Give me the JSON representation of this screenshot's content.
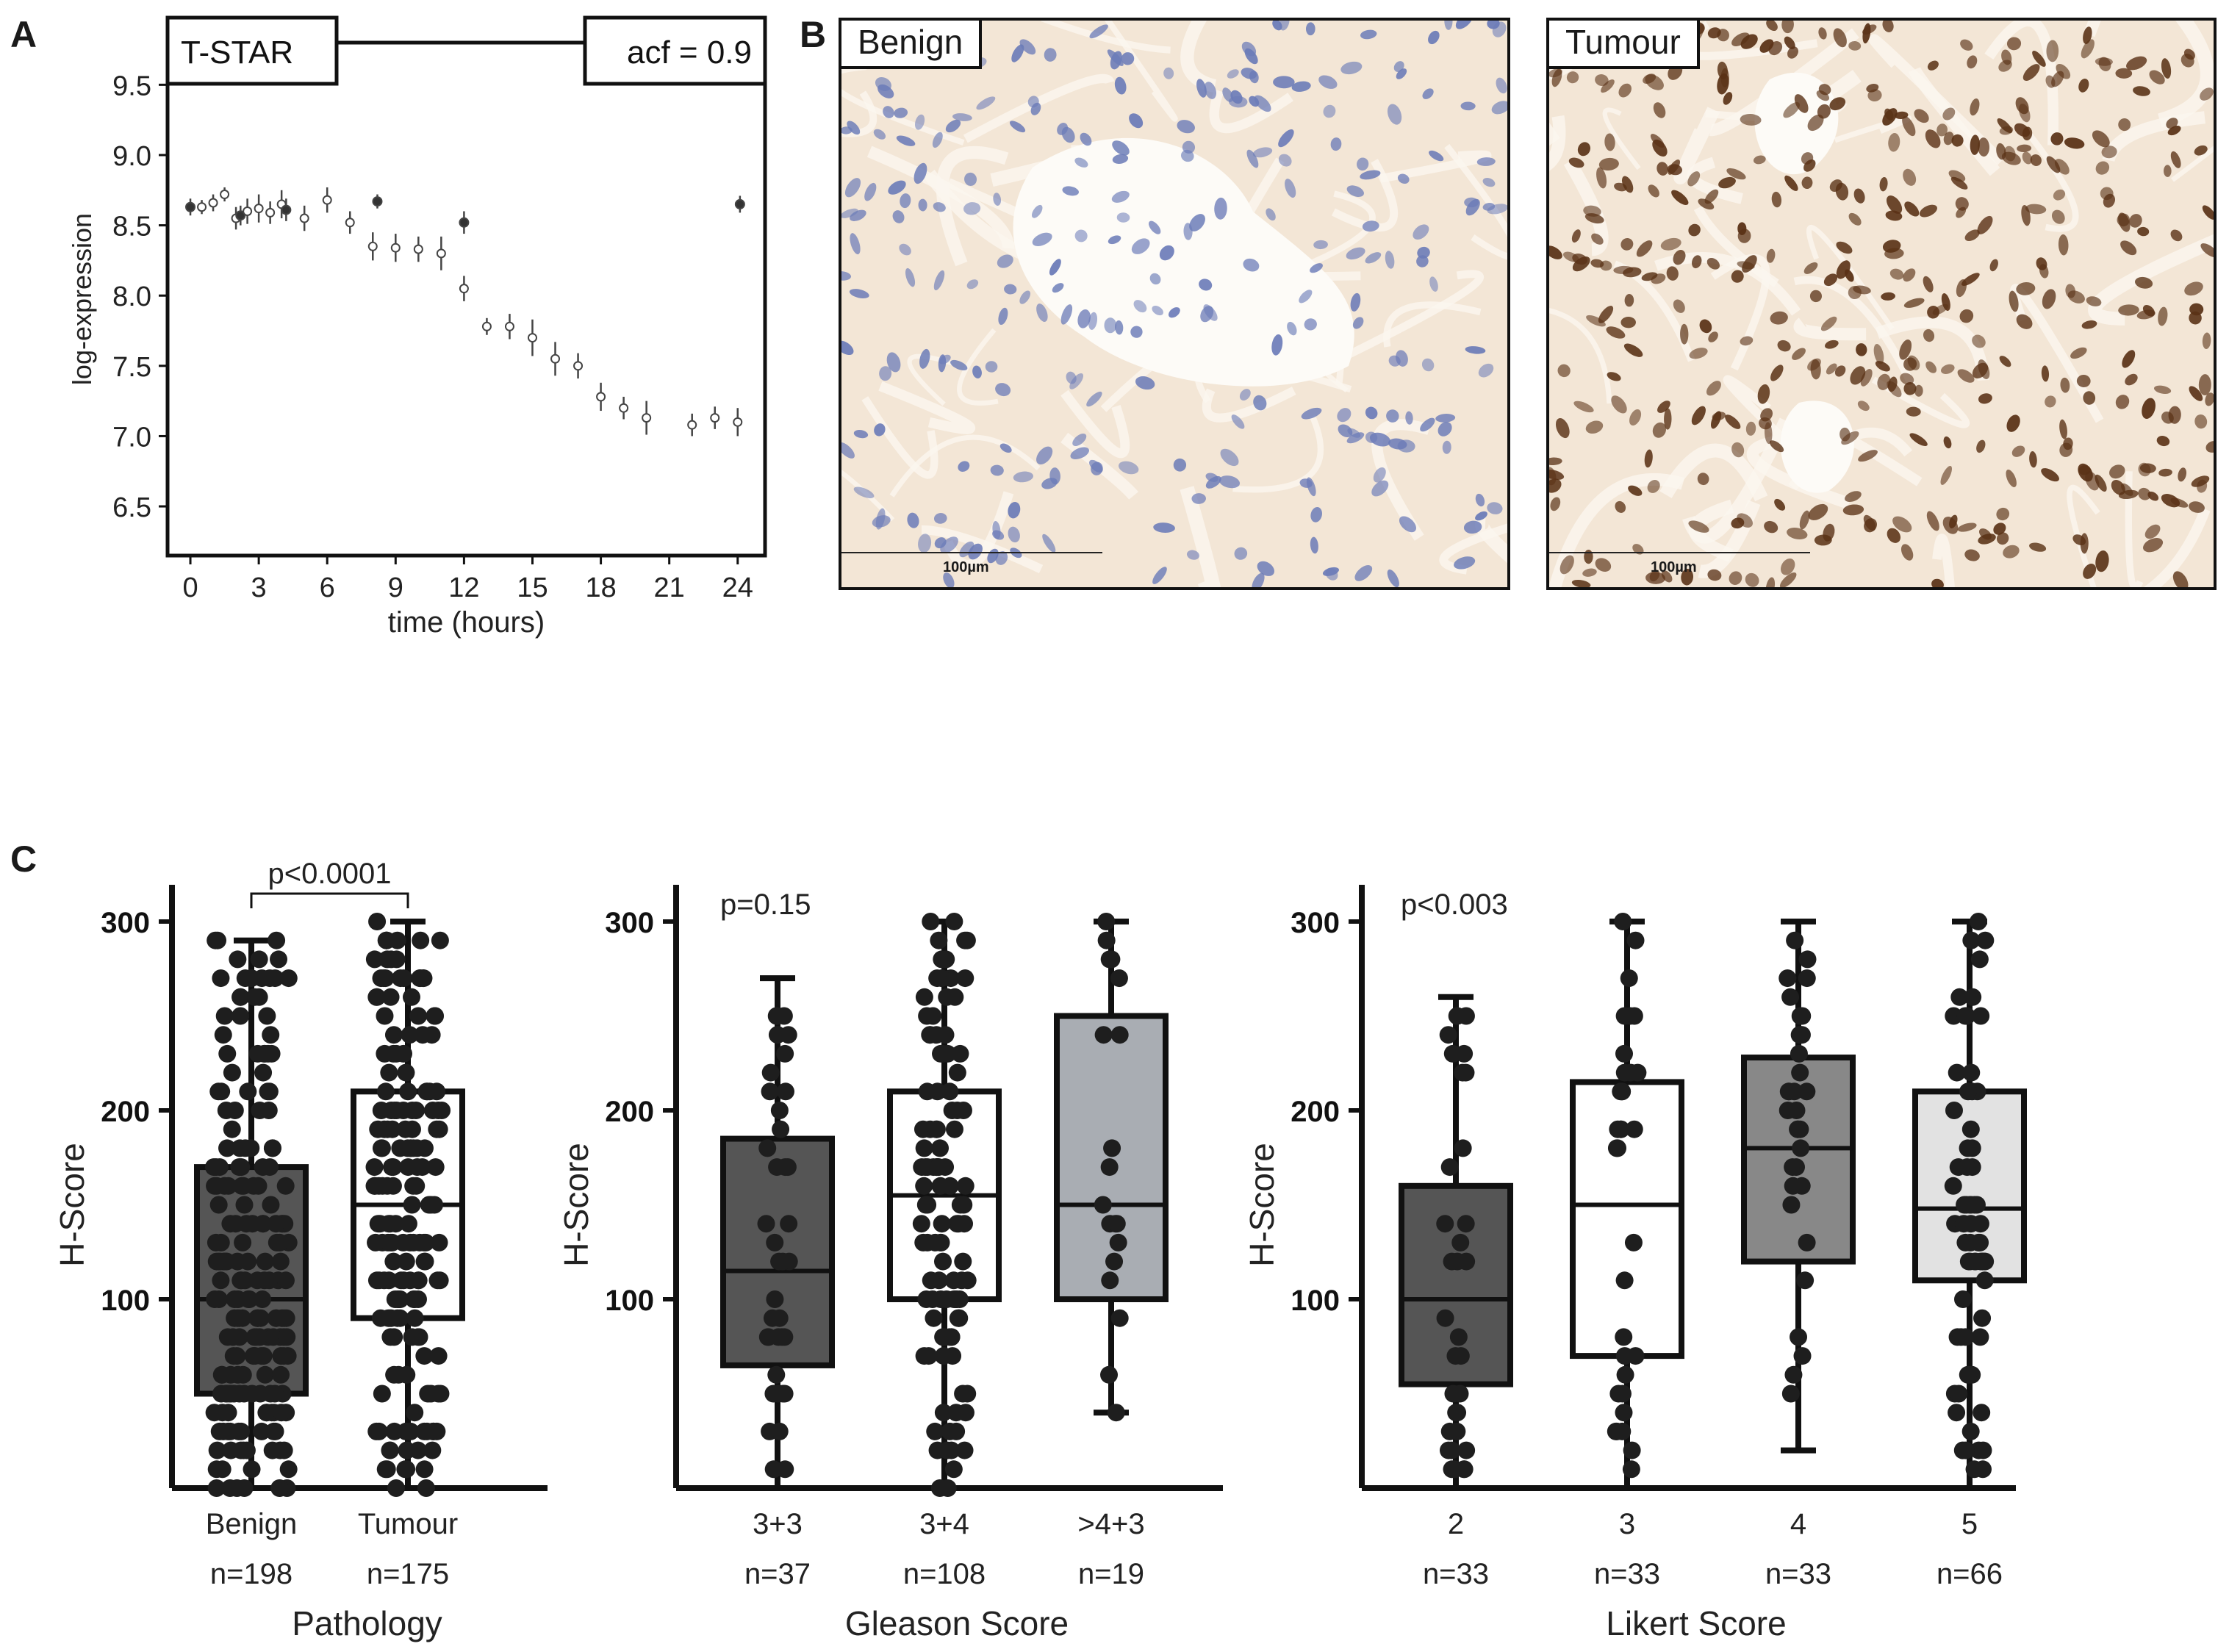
{
  "panel_letters": {
    "a": "A",
    "b": "B",
    "c": "C"
  },
  "panel_b": {
    "images": [
      {
        "label": "Benign",
        "scale": "100µm",
        "stain": "light"
      },
      {
        "label": "Tumour",
        "scale": "100µm",
        "stain": "dark"
      }
    ],
    "colors": {
      "bg": "#f3e6d6",
      "stroma": "#ead8c2",
      "nucleus_light": "#6c7cb8",
      "nucleus_dark": "#5a3216"
    }
  },
  "chart_data": [
    {
      "type": "scatter",
      "panel": "A",
      "title": "T-STAR",
      "annotation": "acf = 0.9",
      "xlabel": "time (hours)",
      "ylabel": "log-expression",
      "xlim": [
        -1,
        25.2
      ],
      "ylim": [
        6.15,
        9.8
      ],
      "xticks": [
        0,
        3,
        6,
        9,
        12,
        15,
        18,
        21,
        24
      ],
      "yticks": [
        6.5,
        7.0,
        7.5,
        8.0,
        8.5,
        9.0,
        9.5
      ],
      "ytick_labels": [
        "6.5",
        "7.0",
        "7.5",
        "8.0",
        "8.5",
        "9.0",
        "9.5"
      ],
      "points": [
        {
          "x": 0,
          "y": 8.63,
          "err": 0.06,
          "solid": true
        },
        {
          "x": 0.5,
          "y": 8.63,
          "err": 0.05,
          "solid": false
        },
        {
          "x": 1,
          "y": 8.66,
          "err": 0.06,
          "solid": false
        },
        {
          "x": 1.5,
          "y": 8.72,
          "err": 0.05,
          "solid": false
        },
        {
          "x": 2,
          "y": 8.55,
          "err": 0.08,
          "solid": false
        },
        {
          "x": 2.2,
          "y": 8.57,
          "err": 0.07,
          "solid": true
        },
        {
          "x": 2.5,
          "y": 8.6,
          "err": 0.09,
          "solid": false
        },
        {
          "x": 3,
          "y": 8.62,
          "err": 0.1,
          "solid": false
        },
        {
          "x": 3.5,
          "y": 8.59,
          "err": 0.08,
          "solid": false
        },
        {
          "x": 4,
          "y": 8.65,
          "err": 0.1,
          "solid": false
        },
        {
          "x": 4.2,
          "y": 8.61,
          "err": 0.08,
          "solid": true
        },
        {
          "x": 5,
          "y": 8.55,
          "err": 0.09,
          "solid": false
        },
        {
          "x": 6,
          "y": 8.68,
          "err": 0.09,
          "solid": false
        },
        {
          "x": 7,
          "y": 8.52,
          "err": 0.08,
          "solid": false
        },
        {
          "x": 8,
          "y": 8.35,
          "err": 0.1,
          "solid": false
        },
        {
          "x": 8.2,
          "y": 8.67,
          "err": 0.05,
          "solid": true
        },
        {
          "x": 9,
          "y": 8.34,
          "err": 0.1,
          "solid": false
        },
        {
          "x": 10,
          "y": 8.33,
          "err": 0.09,
          "solid": false
        },
        {
          "x": 11,
          "y": 8.3,
          "err": 0.12,
          "solid": false
        },
        {
          "x": 12,
          "y": 8.52,
          "err": 0.08,
          "solid": true
        },
        {
          "x": 12,
          "y": 8.05,
          "err": 0.09,
          "solid": false
        },
        {
          "x": 13,
          "y": 7.78,
          "err": 0.06,
          "solid": false
        },
        {
          "x": 14,
          "y": 7.78,
          "err": 0.09,
          "solid": false
        },
        {
          "x": 15,
          "y": 7.7,
          "err": 0.13,
          "solid": false
        },
        {
          "x": 16,
          "y": 7.55,
          "err": 0.12,
          "solid": false
        },
        {
          "x": 17,
          "y": 7.5,
          "err": 0.09,
          "solid": false
        },
        {
          "x": 18,
          "y": 7.28,
          "err": 0.1,
          "solid": false
        },
        {
          "x": 19,
          "y": 7.2,
          "err": 0.08,
          "solid": false
        },
        {
          "x": 20,
          "y": 7.13,
          "err": 0.12,
          "solid": false
        },
        {
          "x": 22,
          "y": 7.08,
          "err": 0.08,
          "solid": false
        },
        {
          "x": 23,
          "y": 7.13,
          "err": 0.08,
          "solid": false
        },
        {
          "x": 24,
          "y": 7.1,
          "err": 0.1,
          "solid": false
        },
        {
          "x": 24.1,
          "y": 8.65,
          "err": 0.06,
          "solid": true
        }
      ]
    },
    {
      "type": "box",
      "panel": "C1",
      "ylabel": "H-Score",
      "xlabel": "Pathology",
      "ylim": [
        0,
        300
      ],
      "yticks": [
        100,
        200,
        300
      ],
      "annotation": "p<0.0001",
      "bracket": true,
      "groups": [
        {
          "label": "Benign",
          "n": "n=198",
          "min": 0,
          "q1": 50,
          "median": 100,
          "q3": 170,
          "max": 290,
          "fill": "#555555",
          "count": 198,
          "seed": 11
        },
        {
          "label": "Tumour",
          "n": "n=175",
          "min": 0,
          "q1": 90,
          "median": 150,
          "q3": 210,
          "max": 300,
          "fill": "#ffffff",
          "count": 175,
          "seed": 23
        }
      ]
    },
    {
      "type": "box",
      "panel": "C2",
      "ylabel": "H-Score",
      "xlabel": "Gleason Score",
      "ylim": [
        0,
        300
      ],
      "yticks": [
        100,
        200,
        300
      ],
      "annotation": "p=0.15",
      "bracket": false,
      "groups": [
        {
          "label": "3+3",
          "n": "n=37",
          "min": 0,
          "q1": 65,
          "median": 115,
          "q3": 185,
          "max": 270,
          "fill": "#555555",
          "count": 37,
          "seed": 5
        },
        {
          "label": "3+4",
          "n": "n=108",
          "min": 0,
          "q1": 100,
          "median": 155,
          "q3": 210,
          "max": 300,
          "fill": "#ffffff",
          "count": 108,
          "seed": 9
        },
        {
          "label": ">4+3",
          "n": "n=19",
          "min": 40,
          "q1": 100,
          "median": 150,
          "q3": 250,
          "max": 300,
          "fill": "#a9adb3",
          "count": 19,
          "seed": 31
        }
      ]
    },
    {
      "type": "box",
      "panel": "C3",
      "ylabel": "H-Score",
      "xlabel": "Likert Score",
      "ylim": [
        0,
        300
      ],
      "yticks": [
        100,
        200,
        300
      ],
      "annotation": "p<0.003",
      "bracket": false,
      "groups": [
        {
          "label": "2",
          "n": "n=33",
          "min": 0,
          "q1": 55,
          "median": 100,
          "q3": 160,
          "max": 260,
          "fill": "#555555",
          "count": 33,
          "seed": 3
        },
        {
          "label": "3",
          "n": "n=33",
          "min": 0,
          "q1": 70,
          "median": 150,
          "q3": 215,
          "max": 300,
          "fill": "#ffffff",
          "count": 33,
          "seed": 17
        },
        {
          "label": "4",
          "n": "n=33",
          "min": 20,
          "q1": 120,
          "median": 180,
          "q3": 228,
          "max": 300,
          "fill": "#888888",
          "count": 33,
          "seed": 41
        },
        {
          "label": "5",
          "n": "n=66",
          "min": 0,
          "q1": 110,
          "median": 148,
          "q3": 210,
          "max": 300,
          "fill": "#e2e2e2",
          "count": 66,
          "seed": 53
        }
      ]
    }
  ]
}
